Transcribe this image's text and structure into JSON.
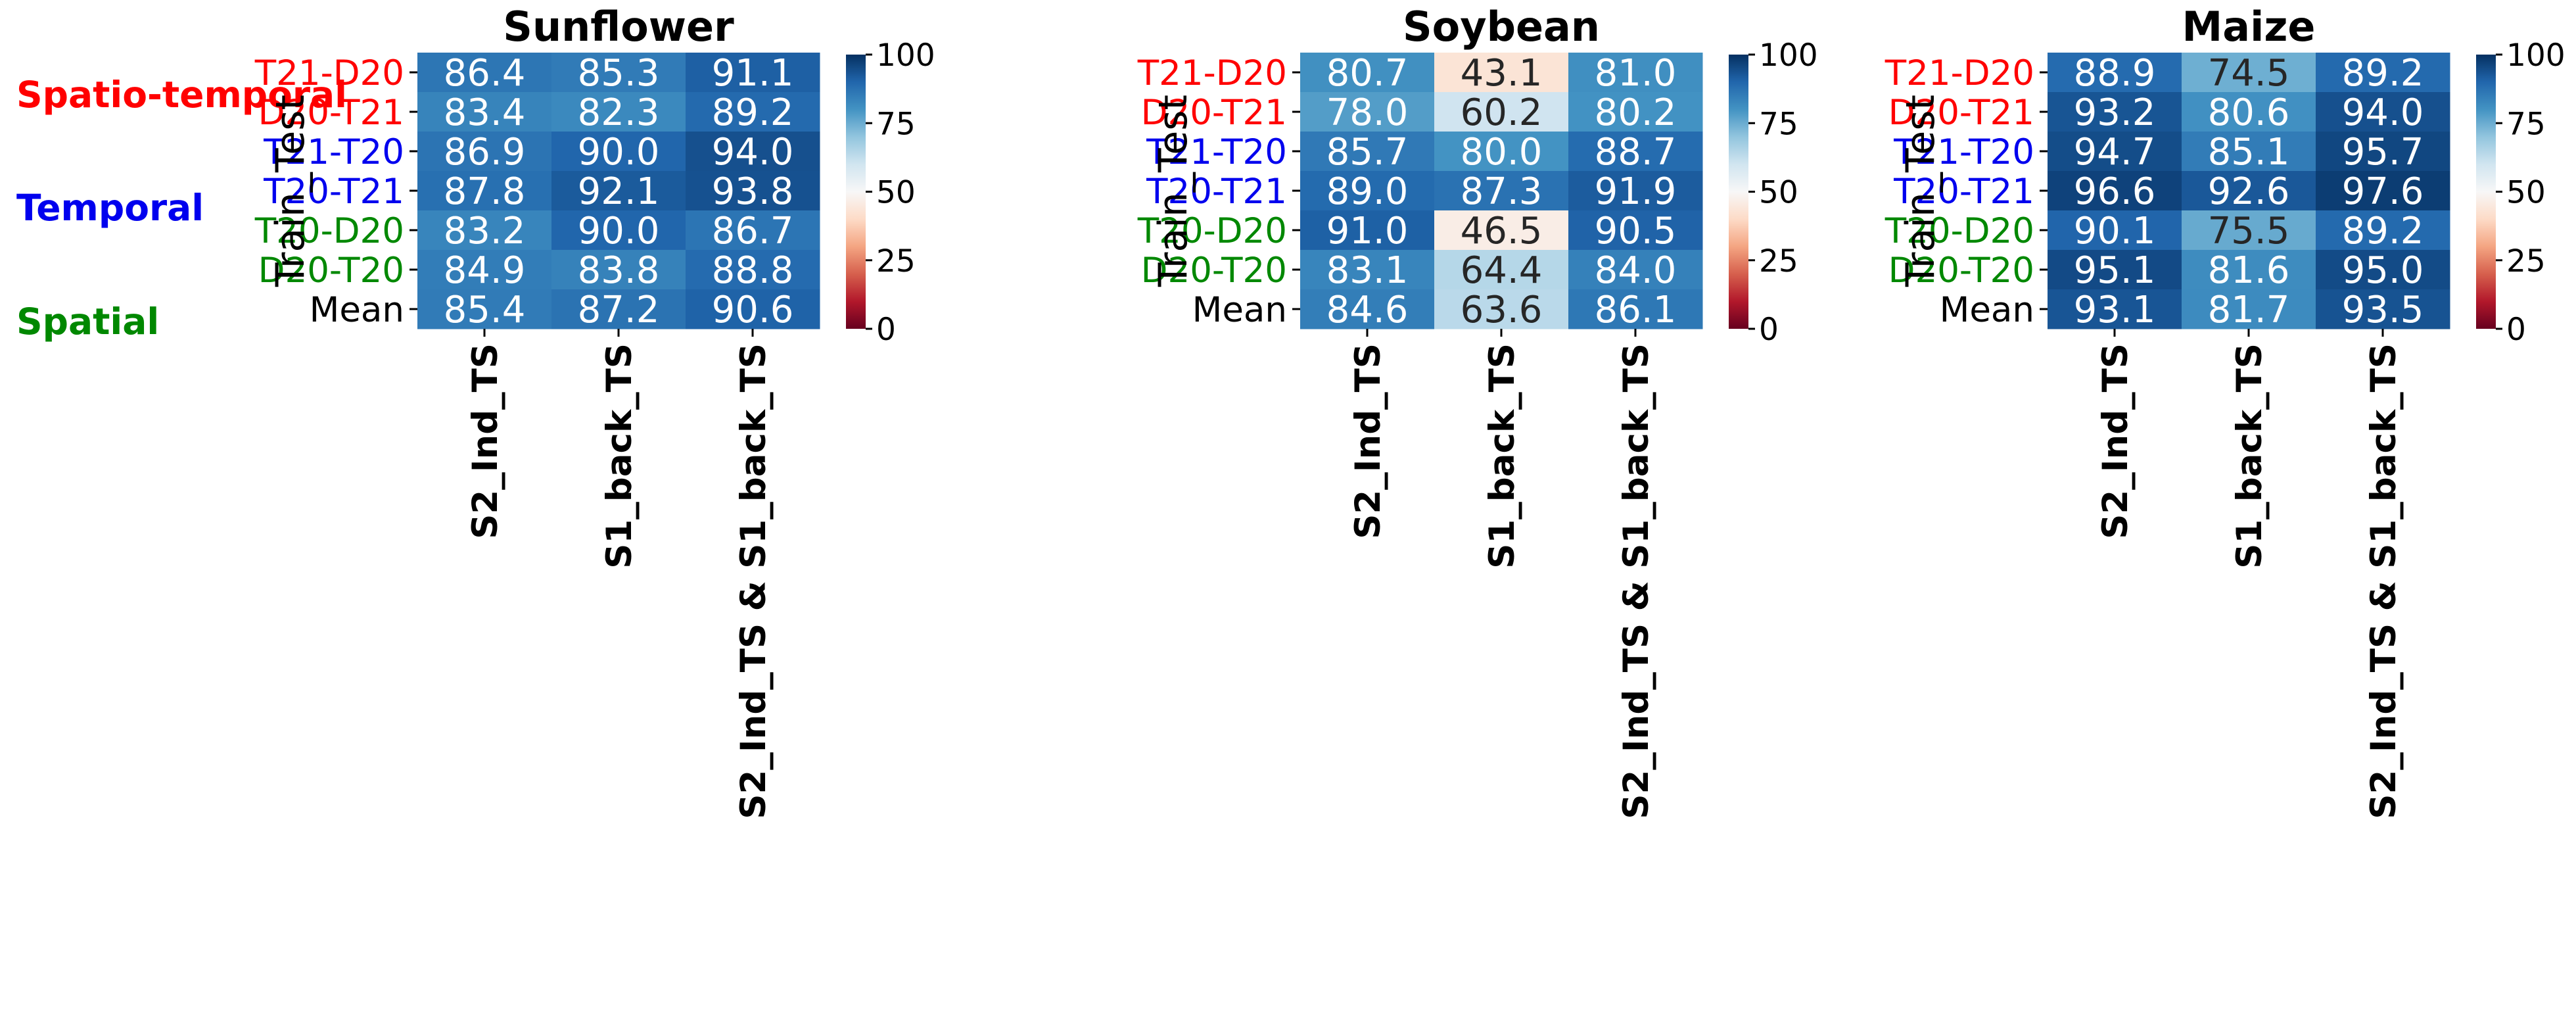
{
  "colors": {
    "spatio_temporal": "#ff0000",
    "temporal": "#0000ee",
    "spatial": "#008800",
    "mean": "#000000"
  },
  "group_labels": [
    {
      "text": "Spatio-temporal",
      "group": "spatio_temporal"
    },
    {
      "text": "Temporal",
      "group": "temporal"
    },
    {
      "text": "Spatial",
      "group": "spatial"
    }
  ],
  "chart_data": [
    {
      "type": "heatmap",
      "title": "Sunflower",
      "ylabel": "Train_Test",
      "rows": [
        "T21-D20",
        "D20-T21",
        "T21-T20",
        "T20-T21",
        "T20-D20",
        "D20-T20",
        "Mean"
      ],
      "row_groups": [
        "spatio_temporal",
        "spatio_temporal",
        "temporal",
        "temporal",
        "spatial",
        "spatial",
        "mean"
      ],
      "columns": [
        "S2_Ind_TS",
        "S1_back_TS",
        "S2_Ind_TS & S1_back_TS"
      ],
      "values": [
        [
          86.4,
          85.3,
          91.1
        ],
        [
          83.4,
          82.3,
          89.2
        ],
        [
          86.9,
          90.0,
          94.0
        ],
        [
          87.8,
          92.1,
          93.8
        ],
        [
          83.2,
          90.0,
          86.7
        ],
        [
          84.9,
          83.8,
          88.8
        ],
        [
          85.4,
          87.2,
          90.6
        ]
      ],
      "colorbar": {
        "range": [
          0,
          100
        ],
        "ticks": [
          0,
          25,
          50,
          75,
          100
        ],
        "colormap": "RdBu"
      }
    },
    {
      "type": "heatmap",
      "title": "Soybean",
      "ylabel": "Train_Test",
      "rows": [
        "T21-D20",
        "D20-T21",
        "T21-T20",
        "T20-T21",
        "T20-D20",
        "D20-T20",
        "Mean"
      ],
      "row_groups": [
        "spatio_temporal",
        "spatio_temporal",
        "temporal",
        "temporal",
        "spatial",
        "spatial",
        "mean"
      ],
      "columns": [
        "S2_Ind_TS",
        "S1_back_TS",
        "S2_Ind_TS & S1_back_TS"
      ],
      "values": [
        [
          80.7,
          43.1,
          81.0
        ],
        [
          78.0,
          60.2,
          80.2
        ],
        [
          85.7,
          80.0,
          88.7
        ],
        [
          89.0,
          87.3,
          91.9
        ],
        [
          91.0,
          46.5,
          90.5
        ],
        [
          83.1,
          64.4,
          84.0
        ],
        [
          84.6,
          63.6,
          86.1
        ]
      ],
      "colorbar": {
        "range": [
          0,
          100
        ],
        "ticks": [
          0,
          25,
          50,
          75,
          100
        ],
        "colormap": "RdBu"
      }
    },
    {
      "type": "heatmap",
      "title": "Maize",
      "ylabel": "Train_Test",
      "rows": [
        "T21-D20",
        "D20-T21",
        "T21-T20",
        "T20-T21",
        "T20-D20",
        "D20-T20",
        "Mean"
      ],
      "row_groups": [
        "spatio_temporal",
        "spatio_temporal",
        "temporal",
        "temporal",
        "spatial",
        "spatial",
        "mean"
      ],
      "columns": [
        "S2_Ind_TS",
        "S1_back_TS",
        "S2_Ind_TS & S1_back_TS"
      ],
      "values": [
        [
          88.9,
          74.5,
          89.2
        ],
        [
          93.2,
          80.6,
          94.0
        ],
        [
          94.7,
          85.1,
          95.7
        ],
        [
          96.6,
          92.6,
          97.6
        ],
        [
          90.1,
          75.5,
          89.2
        ],
        [
          95.1,
          81.6,
          95.0
        ],
        [
          93.1,
          81.7,
          93.5
        ]
      ],
      "colorbar": {
        "range": [
          0,
          100
        ],
        "ticks": [
          0,
          25,
          50,
          75,
          100
        ],
        "colormap": "RdBu"
      }
    }
  ]
}
